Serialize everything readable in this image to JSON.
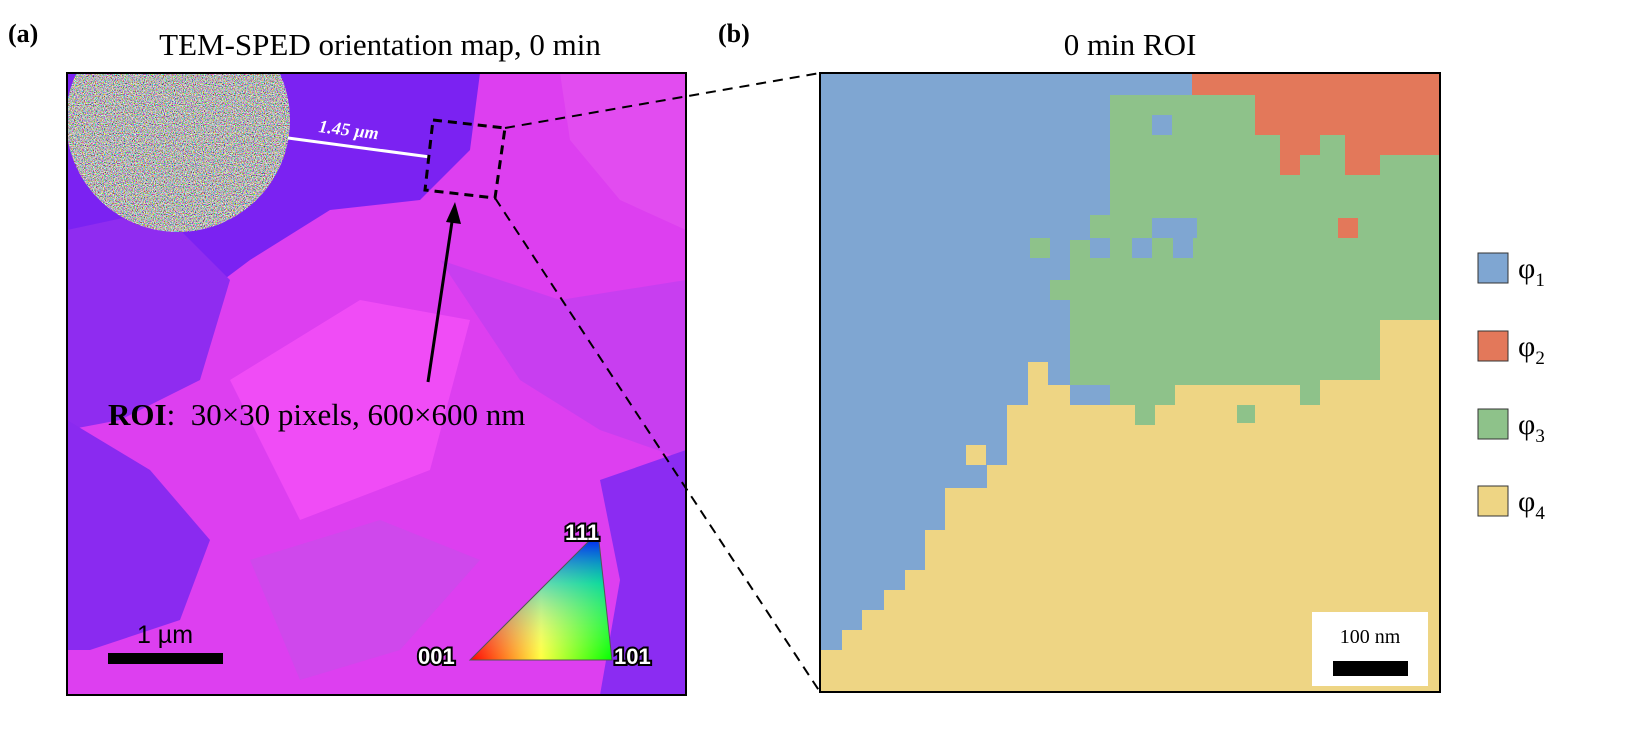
{
  "panel_a": {
    "tag": "(a)",
    "title": "TEM-SPED orientation map, 0 min",
    "distance_label": "1.45 µm",
    "roi_label": "ROI",
    "roi_text": ":  30×30 pixels, 600×600 nm",
    "scale_label": "1 µm",
    "ipf_labels": [
      "111",
      "001",
      "101"
    ]
  },
  "panel_b": {
    "tag": "(b)",
    "title": "0 min ROI",
    "scale_label": "100 nm",
    "legend": [
      {
        "symbol": "φ",
        "sub": "1"
      },
      {
        "symbol": "φ",
        "sub": "2"
      },
      {
        "symbol": "φ",
        "sub": "3"
      },
      {
        "symbol": "φ",
        "sub": "4"
      }
    ]
  }
}
